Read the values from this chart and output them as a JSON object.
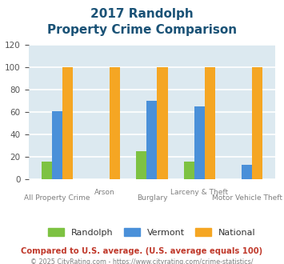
{
  "title_line1": "2017 Randolph",
  "title_line2": "Property Crime Comparison",
  "categories": [
    "All Property Crime",
    "Arson",
    "Burglary",
    "Larceny & Theft",
    "Motor Vehicle Theft"
  ],
  "randolph": [
    16,
    0,
    25,
    16,
    0
  ],
  "vermont": [
    61,
    0,
    70,
    65,
    13
  ],
  "national": [
    100,
    100,
    100,
    100,
    100
  ],
  "color_randolph": "#7dc242",
  "color_vermont": "#4a90d9",
  "color_national": "#f5a623",
  "ylim": [
    0,
    120
  ],
  "yticks": [
    0,
    20,
    40,
    60,
    80,
    100,
    120
  ],
  "background_color": "#dce9f0",
  "grid_color": "#ffffff",
  "title_color": "#1a5276",
  "xlabel_color": "#7f7f7f",
  "legend_label_randolph": "Randolph",
  "legend_label_vermont": "Vermont",
  "legend_label_national": "National",
  "footnote1": "Compared to U.S. average. (U.S. average equals 100)",
  "footnote2": "© 2025 CityRating.com - https://www.cityrating.com/crime-statistics/",
  "footnote1_color": "#c0392b",
  "footnote2_color": "#7f7f7f"
}
